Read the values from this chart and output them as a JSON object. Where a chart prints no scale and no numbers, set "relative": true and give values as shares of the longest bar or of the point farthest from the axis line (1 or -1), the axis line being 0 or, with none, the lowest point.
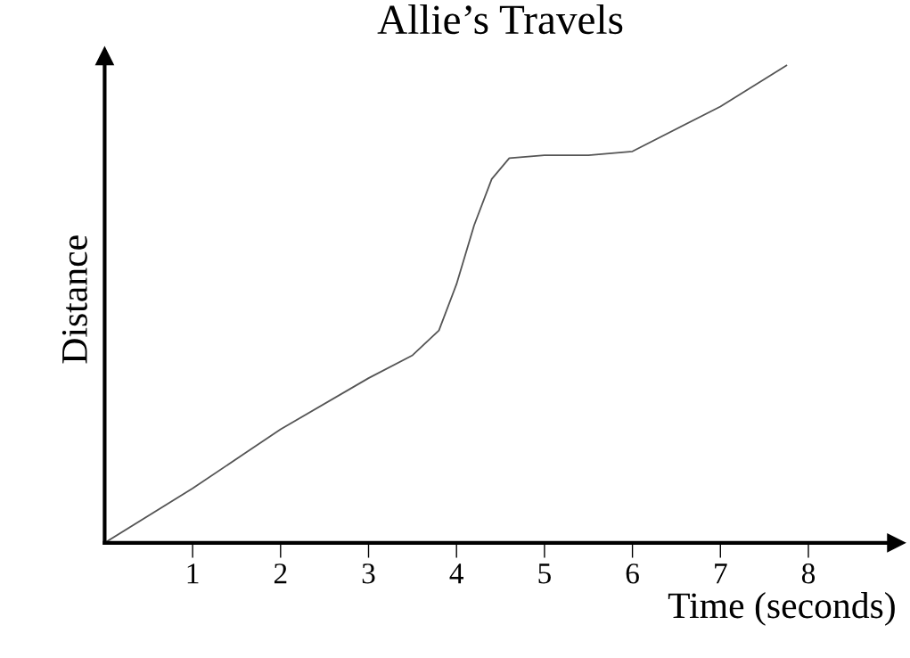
{
  "chart_data": {
    "type": "line",
    "title": "Allie’s Travels",
    "xlabel": "Time (seconds)",
    "ylabel": "Distance",
    "relative": true,
    "x": [
      0,
      1,
      2,
      3,
      3.5,
      3.8,
      4,
      4.2,
      4.4,
      4.6,
      5,
      5.5,
      6,
      7,
      7.75
    ],
    "series": [
      {
        "color": "#555555",
        "values": [
          0,
          0.114,
          0.238,
          0.345,
          0.393,
          0.445,
          0.542,
          0.665,
          0.762,
          0.806,
          0.812,
          0.812,
          0.82,
          0.914,
          1
        ]
      }
    ],
    "xlim": [
      0,
      9
    ],
    "xticks": [
      1,
      2,
      3,
      4,
      5,
      6,
      7,
      8
    ],
    "grid": false,
    "legend": false,
    "marker": "none",
    "line_style": "solid"
  }
}
